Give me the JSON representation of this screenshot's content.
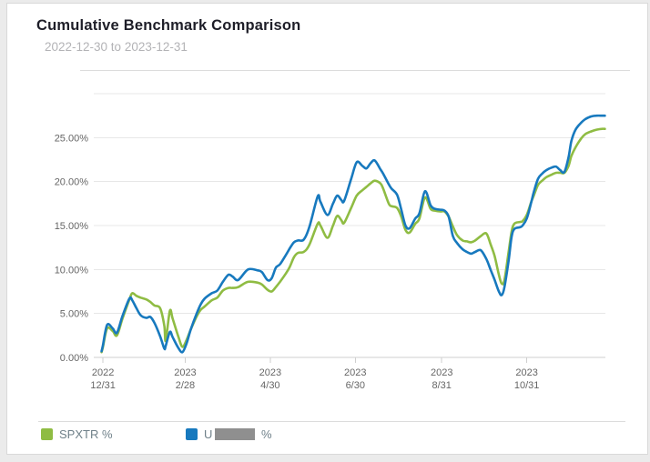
{
  "header": {
    "title": "Cumulative Benchmark Comparison",
    "subtitle": "2022-12-30 to 2023-12-31"
  },
  "colors": {
    "spxtr_green": "#8fbc43",
    "benchmark_blue": "#1779be",
    "grid_line": "#e7e7e7",
    "axis_line": "#cfcfcf",
    "axis_text": "#666666",
    "redaction_gray": "#8f8f8f"
  },
  "legend": {
    "items": [
      {
        "id": "spxtr",
        "swatch_color": "#8fbc43",
        "label": "SPXTR %"
      },
      {
        "id": "u-account",
        "swatch_color": "#1779be",
        "label_prefix": "U",
        "label_redacted": true,
        "label_suffix": "%"
      }
    ]
  },
  "chart_data": {
    "type": "line",
    "title": "Cumulative Benchmark Comparison",
    "subtitle": "2022-12-30 to 2023-12-31",
    "xlabel": "",
    "ylabel": "",
    "x_unit": "days since 2022-12-30",
    "xlim": [
      -5.6,
      361.4
    ],
    "ylim": [
      0,
      30
    ],
    "grid": "horizontal-only",
    "legend_position": "bottom-left",
    "y_ticks": [
      {
        "value": 0,
        "label": "0.00%"
      },
      {
        "value": 5,
        "label": "5.00%"
      },
      {
        "value": 10,
        "label": "10.00%"
      },
      {
        "value": 15,
        "label": "15.00%"
      },
      {
        "value": 20,
        "label": "20.00%"
      },
      {
        "value": 25,
        "label": "25.00%"
      },
      {
        "value": 30,
        "label": ""
      }
    ],
    "x_ticks": [
      {
        "day": 1,
        "line1": "2022",
        "line2": "12/31"
      },
      {
        "day": 60,
        "line1": "2023",
        "line2": "2/28"
      },
      {
        "day": 121,
        "line1": "2023",
        "line2": "4/30"
      },
      {
        "day": 182,
        "line1": "2023",
        "line2": "6/30"
      },
      {
        "day": 244,
        "line1": "2023",
        "line2": "8/31"
      },
      {
        "day": 305,
        "line1": "2023",
        "line2": "10/31"
      }
    ],
    "x": [
      0,
      1,
      4,
      8,
      11,
      15,
      20,
      22,
      25,
      28,
      32,
      35,
      38,
      42,
      45,
      46,
      49,
      51,
      55,
      58,
      61,
      64,
      68,
      71,
      74,
      79,
      83,
      87,
      91,
      94,
      98,
      105,
      112,
      115,
      119,
      122,
      125,
      128,
      132,
      135,
      138,
      141,
      145,
      149,
      155,
      157,
      162,
      166,
      169,
      172,
      174,
      179,
      183,
      187,
      190,
      193,
      196,
      200,
      202,
      206,
      208,
      212,
      215,
      218,
      221,
      225,
      228,
      232,
      236,
      239,
      243,
      246,
      249,
      252,
      255,
      259,
      262,
      265,
      268,
      272,
      276,
      279,
      282,
      285,
      287,
      289,
      292,
      294,
      296,
      300,
      302,
      305,
      308,
      310,
      313,
      316,
      319,
      323,
      326,
      329,
      332,
      335,
      337,
      340,
      344,
      347,
      351,
      355,
      359,
      361
    ],
    "series": [
      {
        "name": "SPXTR %",
        "color": "#8fbc43",
        "values": [
          0.6,
          1.2,
          3.3,
          3.0,
          2.5,
          4.4,
          6.6,
          7.3,
          7.0,
          6.8,
          6.6,
          6.3,
          5.9,
          5.6,
          3.6,
          1.9,
          5.3,
          4.4,
          2.4,
          1.2,
          2.0,
          3.2,
          4.6,
          5.4,
          5.8,
          6.5,
          6.8,
          7.6,
          7.9,
          7.9,
          8.0,
          8.6,
          8.5,
          8.3,
          7.7,
          7.5,
          8.0,
          8.6,
          9.5,
          10.3,
          11.4,
          11.9,
          12.0,
          12.8,
          15.2,
          15.0,
          13.6,
          15.0,
          16.1,
          15.6,
          15.3,
          17.0,
          18.4,
          19.0,
          19.4,
          19.8,
          20.1,
          19.8,
          19.2,
          17.5,
          17.2,
          17.0,
          16.0,
          14.5,
          14.2,
          15.2,
          15.8,
          18.2,
          16.9,
          16.7,
          16.6,
          16.6,
          16.0,
          14.9,
          13.9,
          13.3,
          13.2,
          13.1,
          13.3,
          13.8,
          14.1,
          12.9,
          11.5,
          9.4,
          8.4,
          8.8,
          12.0,
          14.2,
          15.2,
          15.4,
          15.5,
          16.2,
          17.6,
          18.4,
          19.6,
          20.1,
          20.5,
          20.8,
          21.0,
          21.0,
          21.0,
          21.8,
          22.9,
          23.9,
          24.9,
          25.4,
          25.7,
          25.9,
          26.0,
          26.0
        ]
      },
      {
        "name": "U %",
        "name_redacted": true,
        "color": "#1779be",
        "values": [
          0.7,
          1.4,
          3.7,
          3.3,
          2.8,
          4.7,
          6.7,
          6.5,
          5.6,
          4.8,
          4.5,
          4.6,
          3.9,
          2.4,
          1.0,
          1.3,
          2.9,
          2.3,
          1.1,
          0.6,
          1.6,
          3.2,
          4.9,
          6.0,
          6.7,
          7.3,
          7.6,
          8.6,
          9.4,
          9.2,
          8.8,
          10.0,
          9.9,
          9.7,
          8.8,
          9.0,
          10.2,
          10.6,
          11.6,
          12.4,
          13.1,
          13.3,
          13.4,
          14.8,
          18.3,
          17.7,
          16.2,
          17.5,
          18.4,
          17.9,
          17.8,
          20.3,
          22.2,
          21.8,
          21.5,
          22.1,
          22.4,
          21.4,
          20.9,
          19.7,
          19.2,
          18.5,
          16.8,
          15.0,
          14.7,
          15.8,
          16.4,
          18.9,
          17.3,
          16.9,
          16.8,
          16.7,
          16.0,
          13.8,
          13.0,
          12.3,
          12.0,
          11.8,
          12.0,
          12.2,
          11.2,
          10.0,
          8.8,
          7.5,
          7.1,
          8.0,
          11.0,
          13.6,
          14.6,
          14.8,
          15.0,
          15.8,
          17.5,
          18.8,
          20.3,
          20.9,
          21.3,
          21.6,
          21.7,
          21.3,
          21.1,
          22.8,
          24.6,
          25.9,
          26.7,
          27.1,
          27.4,
          27.5,
          27.5,
          27.5
        ]
      }
    ]
  }
}
